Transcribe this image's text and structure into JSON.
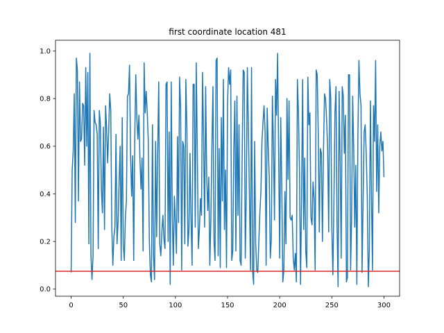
{
  "chart_data": {
    "type": "line",
    "title": "first coordinate location 481",
    "xlabel": "",
    "ylabel": "",
    "xlim": [
      -15,
      315
    ],
    "ylim": [
      -0.03,
      1.045
    ],
    "xticks": [
      0,
      50,
      100,
      150,
      200,
      250,
      300
    ],
    "yticks": [
      0.0,
      0.2,
      0.4,
      0.6,
      0.8,
      1.0
    ],
    "xtick_labels": [
      "0",
      "50",
      "100",
      "150",
      "200",
      "250",
      "300"
    ],
    "ytick_labels": [
      "0.0",
      "0.2",
      "0.4",
      "0.6",
      "0.8",
      "1.0"
    ],
    "grid": false,
    "series": [
      {
        "color": "#1f77b4",
        "values": [
          0.07,
          0.5,
          0.58,
          0.82,
          0.28,
          0.97,
          0.92,
          0.37,
          0.87,
          0.62,
          0.63,
          0.78,
          0.77,
          0.52,
          0.93,
          0.6,
          0.91,
          0.19,
          0.99,
          0.14,
          0.04,
          0.14,
          0.75,
          0.7,
          0.69,
          0.65,
          0.17,
          0.75,
          0.7,
          0.42,
          0.32,
          0.68,
          0.25,
          0.77,
          0.68,
          0.53,
          0.66,
          0.82,
          0.75,
          0.26,
          0.1,
          0.22,
          0.26,
          0.65,
          0.19,
          0.28,
          0.45,
          0.6,
          0.12,
          0.72,
          0.19,
          0.12,
          0.3,
          0.37,
          0.81,
          0.82,
          0.94,
          0.56,
          0.39,
          0.56,
          0.12,
          0.63,
          0.9,
          0.72,
          0.63,
          0.73,
          0.54,
          0.42,
          0.55,
          0.16,
          0.95,
          0.74,
          0.83,
          0.74,
          0.62,
          0.2,
          0.06,
          0.03,
          0.69,
          0.14,
          0.04,
          0.62,
          0.22,
          0.57,
          0.87,
          0.19,
          0.14,
          0.24,
          0.31,
          0.21,
          0.17,
          0.86,
          0.87,
          0.2,
          0.66,
          0.02,
          0.87,
          0.31,
          0.1,
          0.39,
          0.28,
          0.15,
          0.64,
          0.28,
          0.89,
          0.76,
          0.08,
          0.62,
          0.6,
          0.19,
          0.88,
          0.68,
          0.18,
          0.25,
          0.57,
          0.29,
          0.1,
          0.86,
          0.86,
          0.26,
          0.95,
          0.58,
          0.17,
          0.25,
          0.38,
          0.31,
          0.91,
          0.64,
          0.26,
          0.85,
          0.48,
          0.33,
          0.47,
          0.1,
          0.29,
          0.6,
          0.85,
          0.2,
          0.12,
          0.96,
          0.97,
          0.14,
          0.59,
          0.09,
          0.72,
          0.37,
          0.88,
          0.25,
          0.5,
          0.09,
          0.78,
          0.93,
          0.86,
          0.92,
          0.12,
          0.16,
          0.59,
          0.79,
          0.16,
          0.81,
          0.31,
          0.69,
          0.12,
          0.1,
          0.55,
          0.92,
          0.91,
          0.13,
          0.4,
          0.93,
          0.68,
          0.38,
          0.08,
          0.93,
          0.08,
          0.02,
          0.62,
          0.19,
          0.08,
          0.07,
          0.2,
          0.32,
          0.41,
          0.62,
          0.7,
          0.77,
          0.66,
          0.1,
          0.76,
          0.6,
          0.47,
          0.13,
          0.21,
          0.81,
          0.61,
          0.29,
          0.88,
          0.73,
          0.99,
          0.57,
          0.13,
          0.72,
          0.44,
          0.03,
          0.08,
          0.41,
          0.19,
          0.8,
          0.46,
          0.79,
          0.3,
          0.29,
          0.31,
          0.13,
          0.08,
          0.15,
          0.03,
          0.88,
          0.74,
          0.49,
          0.02,
          0.39,
          0.88,
          0.25,
          0.55,
          0.16,
          0.09,
          0.89,
          0.69,
          0.74,
          0.3,
          0.27,
          0.45,
          0.38,
          0.08,
          0.92,
          0.9,
          0.65,
          0.24,
          0.59,
          0.57,
          0.2,
          0.58,
          0.82,
          0.8,
          0.71,
          0.59,
          0.24,
          0.88,
          0.8,
          0.26,
          0.06,
          0.36,
          0.74,
          0.85,
          0.27,
          0.01,
          0.83,
          0.53,
          0.13,
          0.85,
          0.81,
          0.57,
          0.73,
          0.03,
          0.05,
          0.9,
          0.9,
          0.08,
          0.3,
          0.81,
          0.59,
          0.26,
          0.52,
          0.02,
          0.64,
          0.96,
          0.82,
          0.77,
          0.07,
          0.37,
          0.66,
          0.69,
          0.57,
          0.39,
          0.01,
          0.17,
          0.79,
          0.4,
          0.08,
          0.77,
          0.62,
          0.96,
          0.41,
          0.69,
          0.32,
          0.6,
          0.66,
          0.58,
          0.62,
          0.47
        ]
      }
    ],
    "hlines": [
      {
        "y": 0.075,
        "color": "#d62728"
      }
    ]
  }
}
